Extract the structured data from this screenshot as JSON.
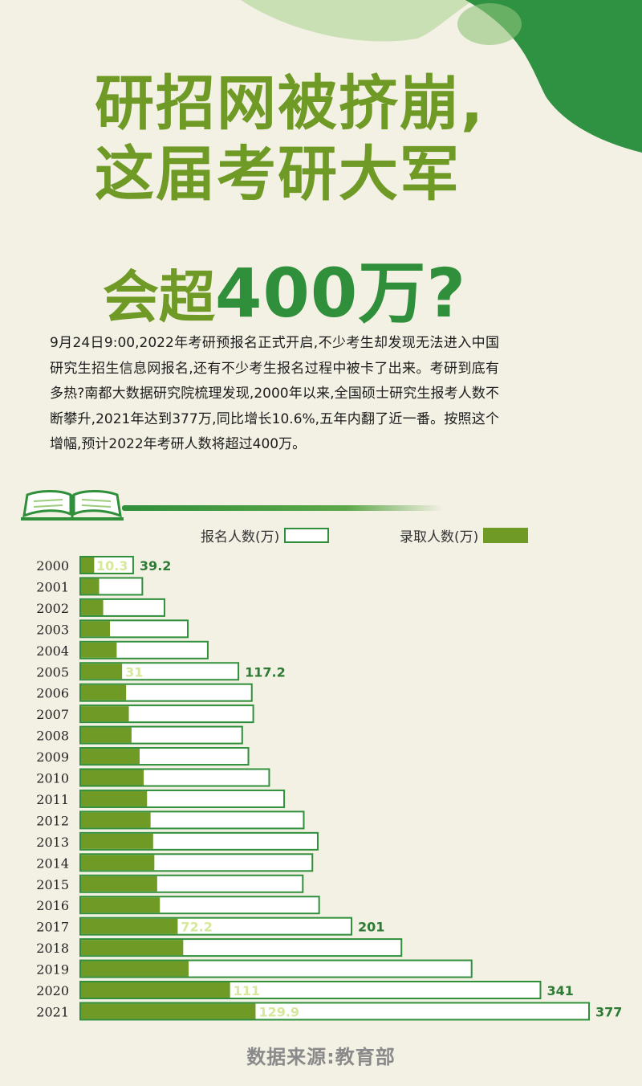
{
  "title": {
    "line1": "研招网被挤崩,",
    "line2": "这届考研大军",
    "line3a": "会超",
    "line3b": "400万?"
  },
  "intro": "9月24日9:00,2022年考研预报名正式开启,不少考生却发现无法进入中国研究生招生信息网报名,还有不少考生报名过程中被卡了出来。考研到底有多热?南都大数据研究院梳理发现,2000年以来,全国硕士研究生报考人数不断攀升,2021年达到377万,同比增长10.6%,五年内翻了近一番。按照这个增幅,预计2022年考研人数将超过400万。",
  "legend": {
    "apply": "报名人数(万)",
    "admit": "录取人数(万)"
  },
  "source": "数据来源:教育部",
  "colors": {
    "admit_bar": "#6f9a26",
    "apply_border": "#2f8f3a",
    "apply_label": "#2f7a35",
    "admit_label": "#d6e89a"
  },
  "chart_data": {
    "type": "bar",
    "orientation": "horizontal",
    "categories": [
      "2000",
      "2001",
      "2002",
      "2003",
      "2004",
      "2005",
      "2006",
      "2007",
      "2008",
      "2009",
      "2010",
      "2011",
      "2012",
      "2013",
      "2014",
      "2015",
      "2016",
      "2017",
      "2018",
      "2019",
      "2020",
      "2021"
    ],
    "series": [
      {
        "name": "报名人数(万)",
        "values": [
          39.2,
          46,
          62.4,
          79.7,
          94.5,
          117.2,
          127.1,
          128.2,
          120,
          124.6,
          140,
          151.1,
          165.6,
          176,
          172,
          164.9,
          177,
          201,
          238,
          290,
          341,
          377
        ]
      },
      {
        "name": "录取人数(万)",
        "values": [
          10.3,
          14,
          17,
          22,
          27,
          31,
          34,
          36,
          38,
          44,
          47,
          49.5,
          52.1,
          54,
          54.9,
          57,
          59,
          72.2,
          76.3,
          80.3,
          111,
          129.9
        ]
      }
    ],
    "data_labels": {
      "apply": {
        "2000": "39.2",
        "2005": "117.2",
        "2017": "201",
        "2020": "341",
        "2021": "377"
      },
      "admit": {
        "2000": "10.3",
        "2005": "31",
        "2017": "72.2",
        "2020": "111",
        "2021": "129.9"
      }
    },
    "xlim": [
      0,
      377
    ]
  }
}
